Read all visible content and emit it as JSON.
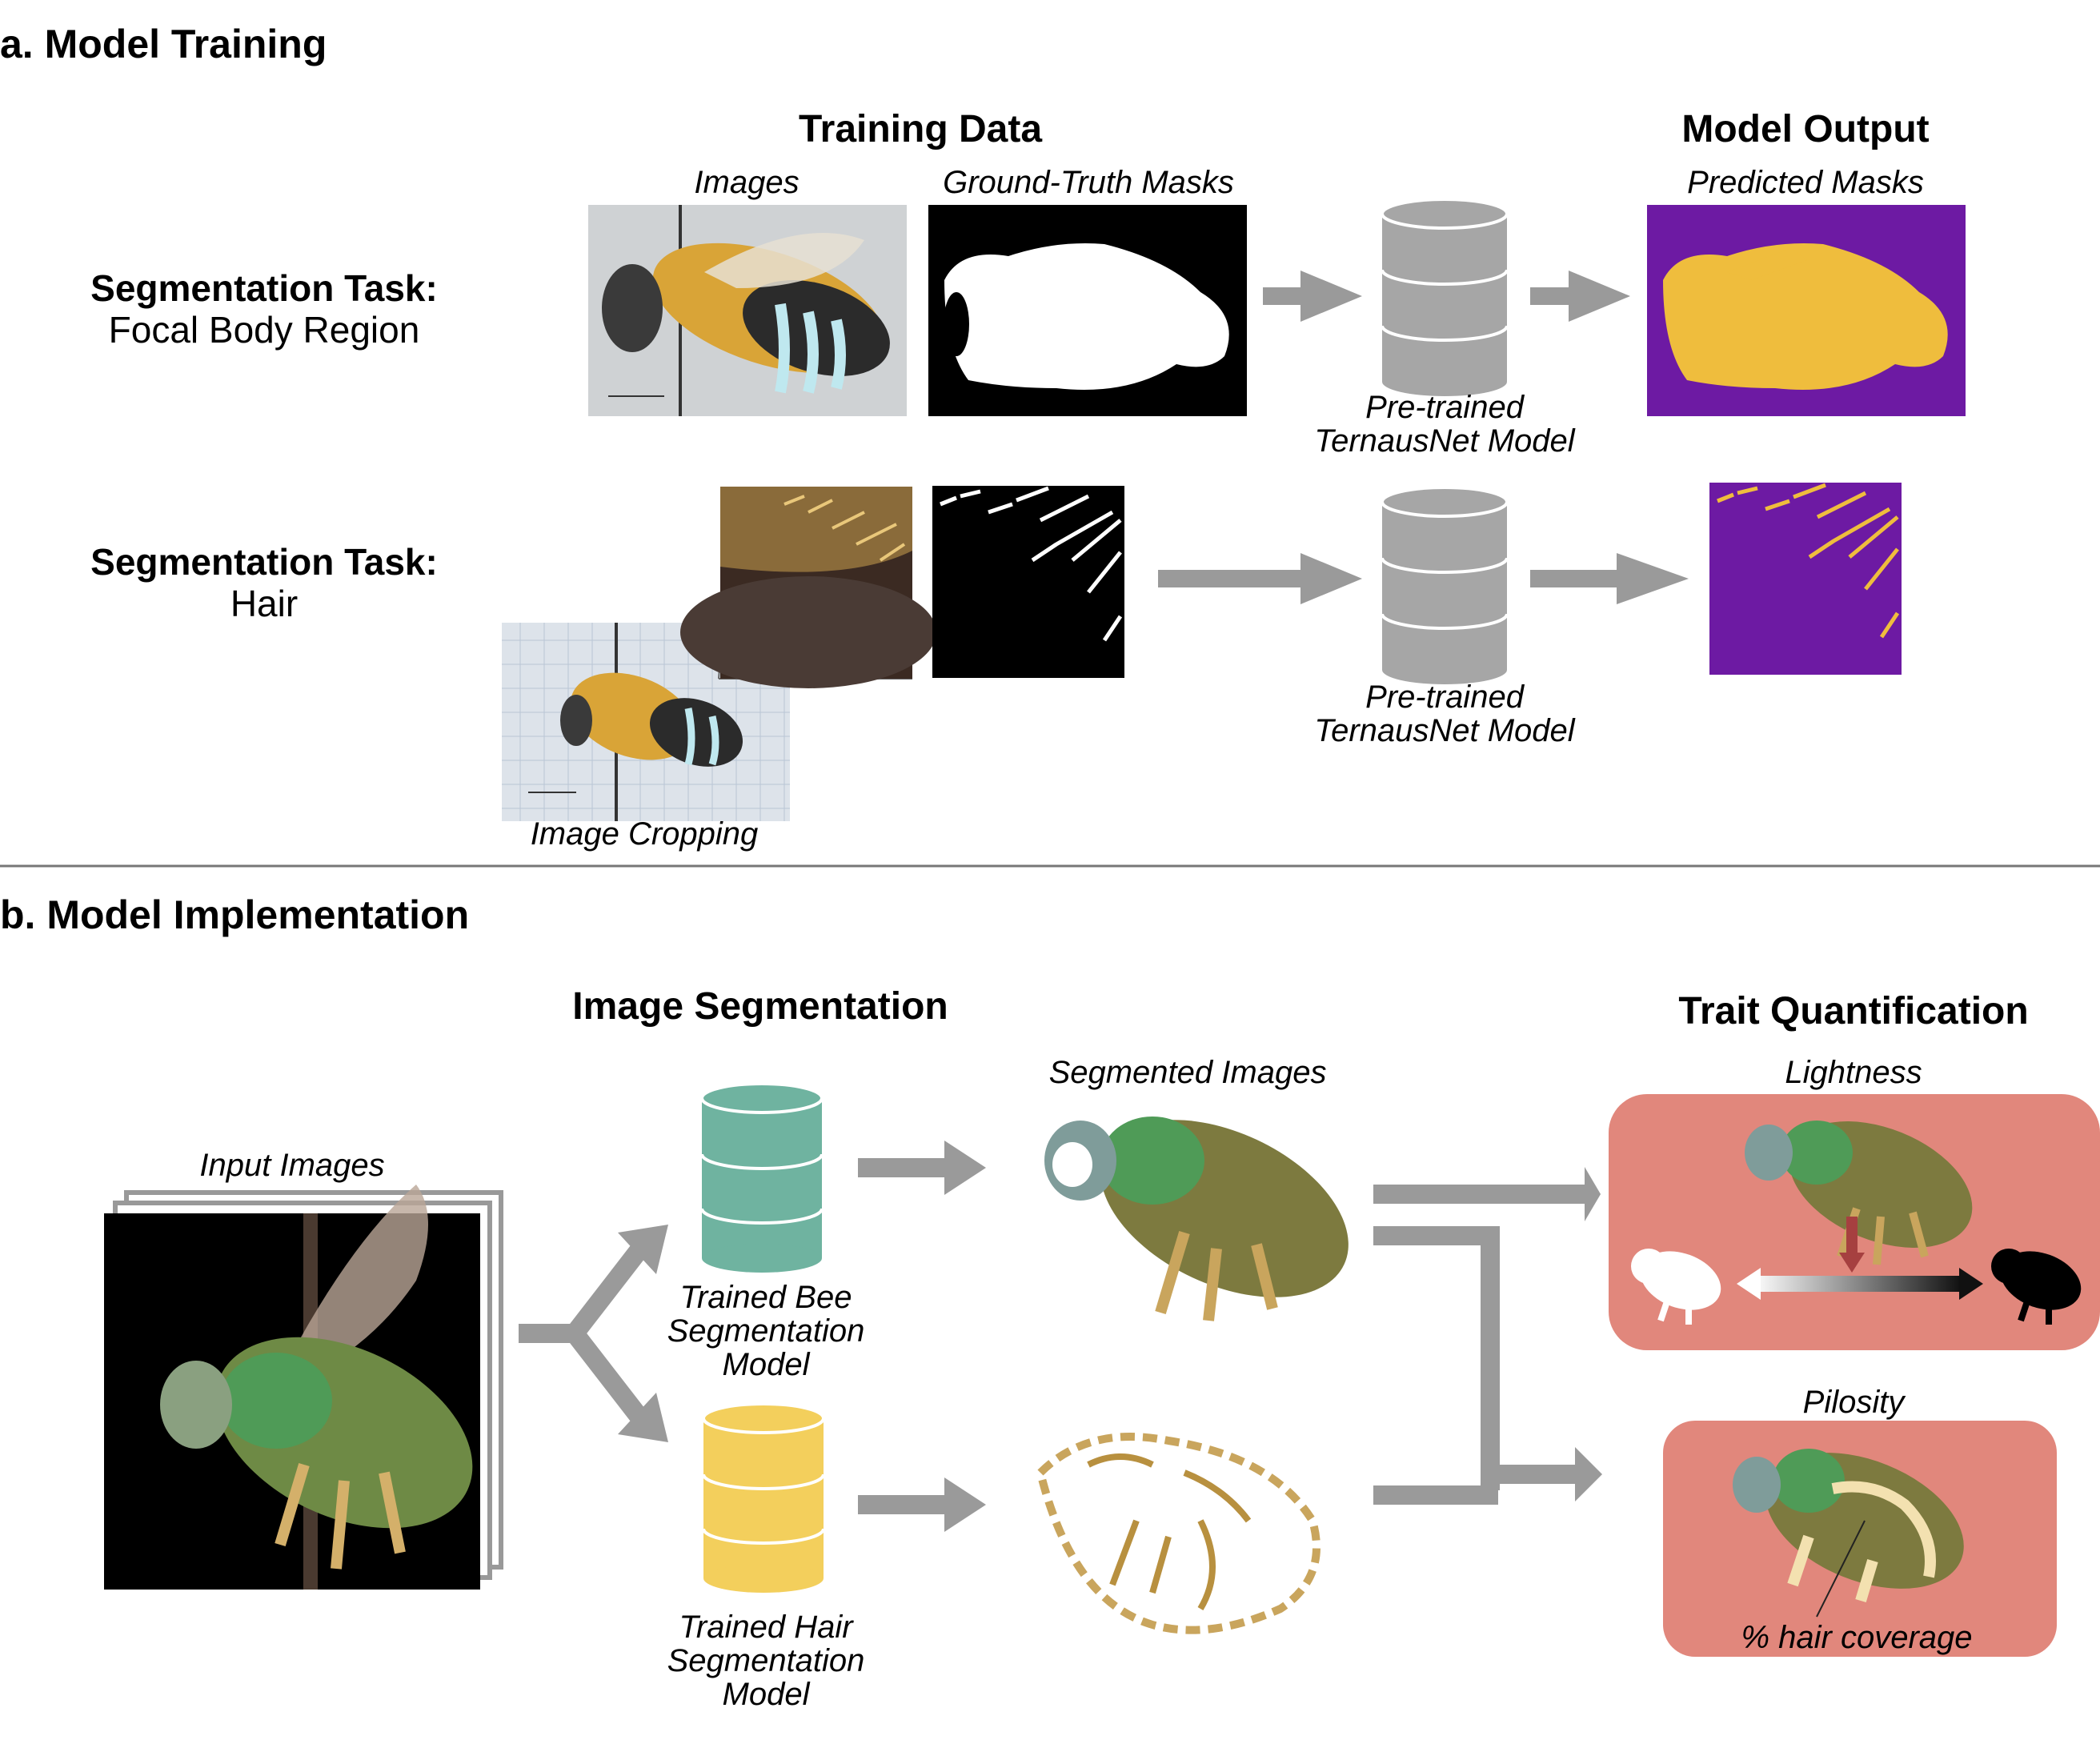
{
  "section_a": {
    "title": "a. Model Training",
    "training_data_header": "Training Data",
    "model_output_header": "Model Output",
    "images_label": "Images",
    "masks_label": "Ground-Truth Masks",
    "predicted_label": "Predicted Masks",
    "task1": {
      "line1": "Segmentation Task:",
      "line2": "Focal Body Region"
    },
    "task2": {
      "line1": "Segmentation Task:",
      "line2": "Hair"
    },
    "model1": {
      "line1": "Pre-trained",
      "line2": "TernausNet Model"
    },
    "model2": {
      "line1": "Pre-trained",
      "line2": "TernausNet Model"
    },
    "cropping_label": "Image Cropping"
  },
  "section_b": {
    "title": "b. Model Implementation",
    "segmentation_header": "Image Segmentation",
    "trait_header": "Trait Quantification",
    "input_label": "Input Images",
    "segmented_label": "Segmented Images",
    "bee_model": {
      "line1": "Trained Bee",
      "line2": "Segmentation",
      "line3": "Model"
    },
    "hair_model": {
      "line1": "Trained Hair",
      "line2": "Segmentation",
      "line3": "Model"
    },
    "lightness_label": "Lightness",
    "pilosity_label": "Pilosity",
    "hair_coverage_label": "% hair coverage"
  },
  "colors": {
    "arrow_gray": "#9a9a9a",
    "db_gray": "#a6a6a6",
    "db_teal": "#6fb3a0",
    "db_yellow": "#f3cf5c",
    "mask_purple": "#6d1aa3",
    "mask_yellow": "#efbd3d",
    "panel_salmon": "#e1877c"
  }
}
